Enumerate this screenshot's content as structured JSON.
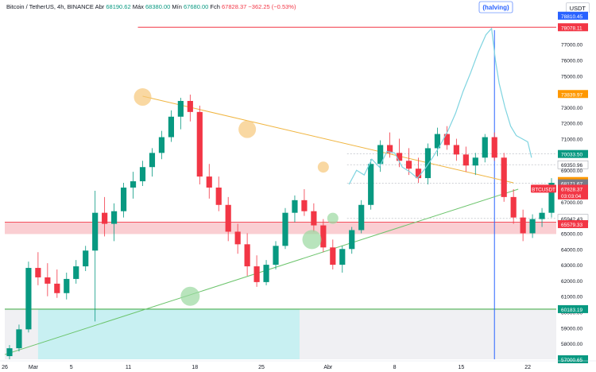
{
  "header": {
    "symbol": "Bitcoin / TetherUS, 4h, BINANCE",
    "open_label": "Abr",
    "open_value": "68190.62",
    "high_label": "Máx",
    "high_value": "68380.00",
    "low_label": "Mín",
    "low_value": "67680.00",
    "close_label": "Fch",
    "close_value": "67828.37",
    "change": "−362.25 (−0.53%)"
  },
  "currency": "USDT",
  "chart_data": {
    "type": "candlestick",
    "y_axis": {
      "range": [
        57000,
        79000
      ],
      "ticks": [
        "58000.00",
        "59000.00",
        "60000.00",
        "61000.00",
        "62000.00",
        "63000.00",
        "64000.00",
        "65000.00",
        "66000.00",
        "67000.00",
        "69000.00",
        "71000.00",
        "72000.00",
        "73000.00",
        "74000.00",
        "75000.00",
        "76000.00",
        "77000.00"
      ]
    },
    "x_axis": {
      "ticks": [
        {
          "label": "26",
          "x": 0
        },
        {
          "label": "Mar",
          "x": 3
        },
        {
          "label": "5",
          "x": 7
        },
        {
          "label": "11",
          "x": 13
        },
        {
          "label": "18",
          "x": 20
        },
        {
          "label": "25",
          "x": 27
        },
        {
          "label": "Abr",
          "x": 34
        },
        {
          "label": "8",
          "x": 41
        },
        {
          "label": "15",
          "x": 48
        },
        {
          "label": "22",
          "x": 55
        }
      ]
    },
    "price_labels": [
      {
        "text": "78810.45",
        "price": 78810.45,
        "color": "#2962ff"
      },
      {
        "text": "78078.11",
        "price": 78078.11,
        "color": "#f23645"
      },
      {
        "text": "73839.97",
        "price": 73839.97,
        "color": "#ff9800"
      },
      {
        "text": "70033.50",
        "price": 70033.5,
        "color": "#089981"
      },
      {
        "text": "69350.96",
        "price": 69350.96,
        "color": "#ffffff"
      },
      {
        "text": "68317.18",
        "price": 68317.18,
        "color": "#ff9800"
      },
      {
        "text": "68171.67",
        "price": 68171.67,
        "color": "#787b86"
      },
      {
        "text": "67828.37",
        "price": 67828.37,
        "color": "#f23645"
      },
      {
        "text": "03:03:04",
        "price": 67400,
        "color": "#f23645"
      },
      {
        "text": "65942.43",
        "price": 65942.43,
        "color": "#ffffff"
      },
      {
        "text": "65579.33",
        "price": 65579.33,
        "color": "#f23645"
      },
      {
        "text": "60183.19",
        "price": 60183.19,
        "color": "#089981"
      },
      {
        "text": "57000.65",
        "price": 57000.65,
        "color": "#089981"
      }
    ],
    "symbol_badge": "BTCUSDT",
    "halving_label": "(halving)",
    "halving_x": 51.5,
    "resistance_line": {
      "price": 78078.11,
      "x_start": 14,
      "x_end": 58
    },
    "support_zone": {
      "low": 64950,
      "high": 65700
    },
    "support_green_line": {
      "price": 60183.19
    },
    "triangle_upper": [
      {
        "x": 14.5,
        "price": 73700
      },
      {
        "x": 53.5,
        "price": 68200
      }
    ],
    "triangle_lower": [
      {
        "x": 0,
        "price": 57300
      },
      {
        "x": 54,
        "price": 67800
      }
    ],
    "projection": [
      {
        "x": 36.2,
        "price": 68100
      },
      {
        "x": 37.0,
        "price": 69000
      },
      {
        "x": 37.8,
        "price": 68700
      },
      {
        "x": 38.6,
        "price": 69700
      },
      {
        "x": 39.4,
        "price": 69200
      },
      {
        "x": 40.2,
        "price": 70200
      },
      {
        "x": 41.0,
        "price": 70100
      },
      {
        "x": 41.8,
        "price": 69200
      },
      {
        "x": 42.6,
        "price": 68900
      },
      {
        "x": 43.4,
        "price": 68500
      },
      {
        "x": 44.2,
        "price": 69100
      },
      {
        "x": 45.0,
        "price": 69800
      },
      {
        "x": 45.8,
        "price": 70600
      },
      {
        "x": 46.6,
        "price": 71500
      },
      {
        "x": 47.4,
        "price": 72600
      },
      {
        "x": 48.2,
        "price": 74000
      },
      {
        "x": 49.0,
        "price": 75200
      },
      {
        "x": 49.8,
        "price": 76500
      },
      {
        "x": 50.6,
        "price": 77600
      },
      {
        "x": 51.2,
        "price": 78000
      },
      {
        "x": 51.6,
        "price": 76000
      },
      {
        "x": 52.0,
        "price": 74500
      },
      {
        "x": 52.6,
        "price": 73000
      },
      {
        "x": 53.2,
        "price": 71800
      },
      {
        "x": 53.8,
        "price": 71200
      },
      {
        "x": 54.4,
        "price": 71000
      },
      {
        "x": 55.0,
        "price": 70800
      },
      {
        "x": 55.4,
        "price": 69800
      }
    ],
    "candles": [
      [
        57200,
        57900,
        57000,
        57700
      ],
      [
        57700,
        59200,
        57500,
        58900
      ],
      [
        58900,
        63200,
        58700,
        62800
      ],
      [
        62800,
        63800,
        61700,
        62200
      ],
      [
        62200,
        63100,
        61000,
        61800
      ],
      [
        61800,
        62700,
        60900,
        61200
      ],
      [
        61200,
        62500,
        60800,
        62100
      ],
      [
        62100,
        63300,
        61800,
        62900
      ],
      [
        62900,
        64200,
        62600,
        63900
      ],
      [
        63900,
        67700,
        59400,
        66300
      ],
      [
        66300,
        67300,
        64800,
        65600
      ],
      [
        65600,
        66900,
        64500,
        66400
      ],
      [
        66400,
        68200,
        66000,
        67900
      ],
      [
        67900,
        68900,
        67200,
        68300
      ],
      [
        68300,
        69600,
        68000,
        69200
      ],
      [
        69200,
        70400,
        68600,
        70100
      ],
      [
        70100,
        71500,
        69700,
        71100
      ],
      [
        71100,
        72800,
        70800,
        72400
      ],
      [
        72400,
        73600,
        71600,
        73400
      ],
      [
        73400,
        73800,
        72100,
        72700
      ],
      [
        72700,
        73100,
        68100,
        68600
      ],
      [
        68600,
        69400,
        67200,
        67900
      ],
      [
        67900,
        68600,
        66400,
        66800
      ],
      [
        66800,
        67300,
        64500,
        65100
      ],
      [
        65100,
        65600,
        63700,
        64300
      ],
      [
        64300,
        65000,
        62300,
        62900
      ],
      [
        62900,
        63600,
        61600,
        61900
      ],
      [
        61900,
        63300,
        61700,
        63000
      ],
      [
        63000,
        64500,
        62700,
        64200
      ],
      [
        64200,
        66600,
        64000,
        66300
      ],
      [
        66300,
        67400,
        65700,
        67100
      ],
      [
        67100,
        67800,
        66100,
        66400
      ],
      [
        66400,
        66900,
        65100,
        65500
      ],
      [
        65500,
        65900,
        63800,
        64100
      ],
      [
        64100,
        64600,
        62700,
        63000
      ],
      [
        63000,
        64200,
        62500,
        64000
      ],
      [
        64000,
        65400,
        63700,
        65200
      ],
      [
        65200,
        67100,
        65000,
        66800
      ],
      [
        66800,
        69700,
        66500,
        69400
      ],
      [
        69400,
        70900,
        68900,
        70600
      ],
      [
        70600,
        71400,
        69800,
        70100
      ],
      [
        70100,
        71000,
        69200,
        69600
      ],
      [
        69600,
        70400,
        68700,
        69100
      ],
      [
        69100,
        69800,
        68200,
        68500
      ],
      [
        68500,
        70700,
        68100,
        70400
      ],
      [
        70400,
        71700,
        69900,
        71300
      ],
      [
        71300,
        71800,
        70300,
        70600
      ],
      [
        70600,
        71000,
        69600,
        70000
      ],
      [
        70000,
        70500,
        68900,
        69300
      ],
      [
        69300,
        70100,
        68700,
        69800
      ],
      [
        69800,
        71300,
        69500,
        71100
      ],
      [
        71100,
        71400,
        69600,
        69800
      ],
      [
        69800,
        70100,
        67000,
        67300
      ],
      [
        67300,
        67800,
        65600,
        66000
      ],
      [
        66000,
        66500,
        64500,
        65000
      ],
      [
        65000,
        66200,
        64700,
        65900
      ],
      [
        65900,
        66600,
        65400,
        66300
      ],
      [
        66300,
        68500,
        66000,
        68200
      ],
      [
        68200,
        68600,
        66600,
        67000
      ],
      [
        67000,
        68400,
        66700,
        67800
      ]
    ],
    "circles": [
      {
        "x": 14.5,
        "price": 73650,
        "color": "orange"
      },
      {
        "x": 25.5,
        "price": 71600,
        "color": "orange"
      },
      {
        "x": 33.5,
        "price": 69200,
        "color": "orange"
      },
      {
        "x": 19.5,
        "price": 61000,
        "color": "green"
      },
      {
        "x": 32.3,
        "price": 64600,
        "color": "green"
      },
      {
        "x": 34.5,
        "price": 65950,
        "color": "green"
      }
    ],
    "cyan_zone": {
      "x_start": 3.5,
      "x_end": 31,
      "price_top": 60183.19
    },
    "grey_zone": {
      "x_start": 0,
      "x_end": 58,
      "price_top": 60183.19
    }
  }
}
